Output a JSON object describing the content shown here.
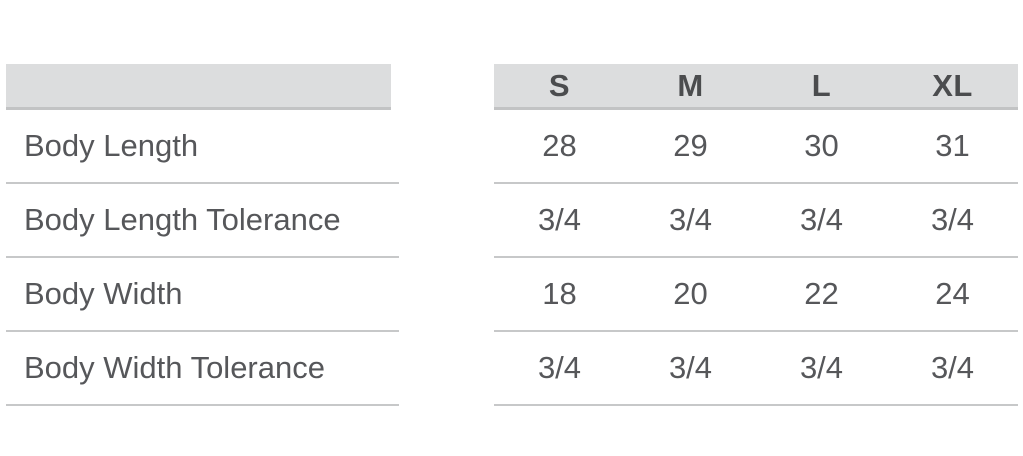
{
  "chart_data": {
    "type": "table",
    "title": "",
    "column_headers": [
      "S",
      "M",
      "L",
      "XL"
    ],
    "row_headers": [
      "Body Length",
      "Body Length Tolerance",
      "Body Width",
      "Body Width Tolerance"
    ],
    "cells": [
      [
        "28",
        "29",
        "30",
        "31"
      ],
      [
        "3/4",
        "3/4",
        "3/4",
        "3/4"
      ],
      [
        "18",
        "20",
        "22",
        "24"
      ],
      [
        "3/4",
        "3/4",
        "3/4",
        "3/4"
      ]
    ],
    "layout": "row-header column separated from value columns by a gap; no vertical gridlines; horizontal dividers between rows"
  },
  "colors": {
    "background": "#ffffff",
    "header_bar_bg": "#dcddde",
    "header_bar_edge": "#c2c3c4",
    "row_divider": "#c7c8c9",
    "header_text": "#4b4c4e",
    "cell_text": "#56575a"
  }
}
